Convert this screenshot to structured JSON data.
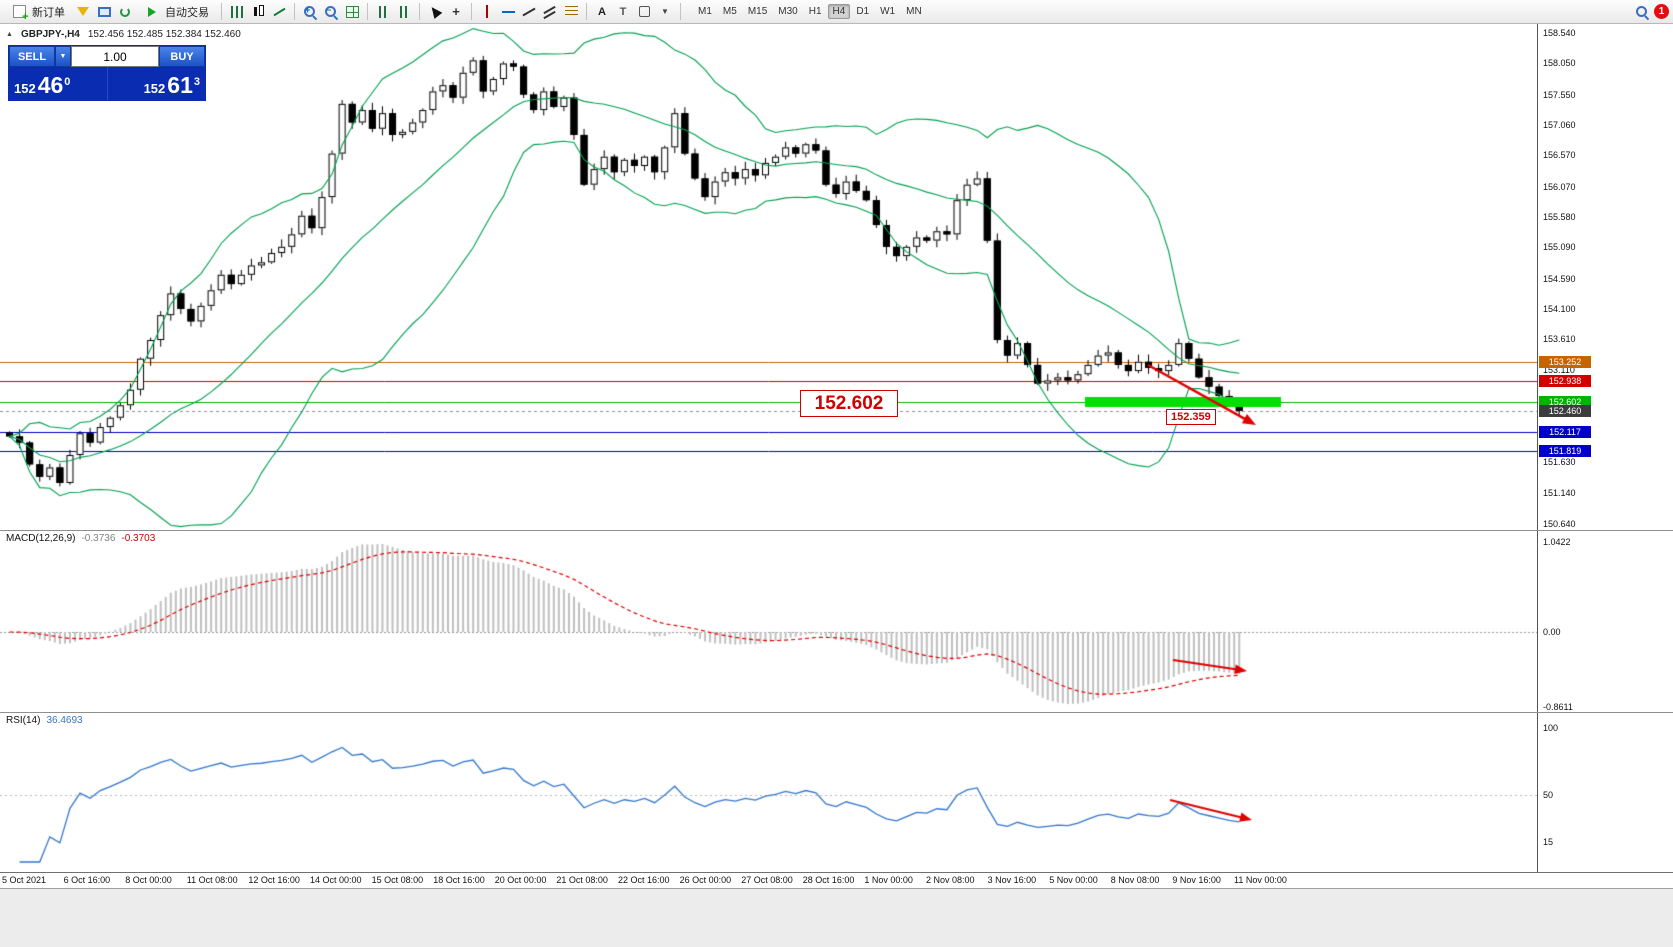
{
  "colors": {
    "band_green": "#00a050",
    "bull": "#ffffff",
    "bear": "#000000",
    "wick": "#000000",
    "macd_hist": "#c0c0c0",
    "macd_signal": "#e00000",
    "rsi_line": "#3377cc",
    "annotation_red": "#e00000",
    "highlight_green": "#00e000",
    "current_price_line": "#909090"
  },
  "toolbar": {
    "new_order_label": "新订单",
    "auto_trading_label": "自动交易",
    "text_tool_label": "A",
    "timeframes": [
      "M1",
      "M5",
      "M15",
      "M30",
      "H1",
      "H4",
      "D1",
      "W1",
      "MN"
    ],
    "active_timeframe": "H4",
    "notification_count": "1"
  },
  "chart_header": {
    "symbol": "GBPJPY-,H4",
    "ohlc": "152.456 152.485 152.384 152.460"
  },
  "trade_panel": {
    "sell_label": "SELL",
    "buy_label": "BUY",
    "volume": "1.00",
    "sell_price_main": "152",
    "sell_price_pips": "46",
    "sell_price_sup": "0",
    "buy_price_main": "152",
    "buy_price_pips": "61",
    "buy_price_sup": "3"
  },
  "price_axis_ticks": [
    "158.540",
    "158.050",
    "157.550",
    "157.060",
    "156.570",
    "156.070",
    "155.580",
    "155.090",
    "154.590",
    "154.100",
    "153.610",
    "153.110",
    "151.630",
    "151.140",
    "150.640"
  ],
  "price_labels": [
    {
      "text": "153.252",
      "bg": "#c86400",
      "price": 153.252
    },
    {
      "text": "152.938",
      "bg": "#d40000",
      "price": 152.938
    },
    {
      "text": "152.602",
      "bg": "#00b400",
      "price": 152.602
    },
    {
      "text": "152.460",
      "bg": "#3c3c3c",
      "price": 152.46
    },
    {
      "text": "152.117",
      "bg": "#0000c8",
      "price": 152.117
    },
    {
      "text": "151.819",
      "bg": "#0000c8",
      "price": 151.819
    }
  ],
  "hlines": [
    {
      "price": 153.252,
      "color": "#c86400",
      "style": "solid"
    },
    {
      "price": 152.938,
      "color": "#d40000",
      "style": "solid"
    },
    {
      "price": 152.602,
      "color": "#00b400",
      "style": "solid"
    },
    {
      "price": 152.46,
      "color": "#909090",
      "style": "dashed"
    },
    {
      "price": 152.117,
      "color": "#0000c8",
      "style": "solid"
    },
    {
      "price": 151.819,
      "color": "#0000c8",
      "style": "solid"
    }
  ],
  "annotations": {
    "big_label": "152.602",
    "small_label": "152.359"
  },
  "macd_label": {
    "name": "MACD(12,26,9)",
    "v1": "-0.3736",
    "v2": "-0.3703"
  },
  "macd_axis": [
    "1.0422",
    "0.00",
    "-0.8611"
  ],
  "rsi_label": {
    "name": "RSI(14)",
    "value": "36.4693"
  },
  "rsi_axis": [
    "100",
    "50",
    "15"
  ],
  "time_axis": [
    "5 Oct 2021",
    "6 Oct 16:00",
    "8 Oct 00:00",
    "11 Oct 08:00",
    "12 Oct 16:00",
    "14 Oct 00:00",
    "15 Oct 08:00",
    "18 Oct 16:00",
    "20 Oct 00:00",
    "21 Oct 08:00",
    "22 Oct 16:00",
    "26 Oct 00:00",
    "27 Oct 08:00",
    "28 Oct 16:00",
    "1 Nov 00:00",
    "2 Nov 08:00",
    "3 Nov 16:00",
    "5 Nov 00:00",
    "8 Nov 08:00",
    "9 Nov 16:00",
    "11 Nov 00:00"
  ],
  "chart_data": {
    "type": "candlestick",
    "symbol": "GBPJPY",
    "timeframe": "H4",
    "price_range": [
      150.64,
      158.54
    ],
    "indicators": [
      "Bollinger(20,2)",
      "MACD(12,26,9)",
      "RSI(14)"
    ],
    "closes": [
      152.05,
      151.95,
      151.6,
      151.4,
      151.55,
      151.3,
      151.75,
      152.1,
      151.95,
      152.2,
      152.35,
      152.55,
      152.8,
      153.3,
      153.6,
      154.0,
      154.35,
      154.1,
      153.9,
      154.15,
      154.4,
      154.65,
      154.5,
      154.65,
      154.8,
      154.85,
      155.0,
      155.1,
      155.3,
      155.6,
      155.4,
      155.9,
      156.6,
      157.4,
      157.1,
      157.3,
      157.0,
      157.25,
      156.9,
      156.95,
      157.1,
      157.3,
      157.6,
      157.7,
      157.5,
      157.9,
      158.1,
      157.6,
      157.8,
      158.05,
      158.0,
      157.55,
      157.3,
      157.6,
      157.35,
      157.5,
      156.9,
      156.1,
      156.35,
      156.55,
      156.3,
      156.5,
      156.4,
      156.55,
      156.3,
      156.7,
      157.25,
      156.6,
      156.2,
      155.9,
      156.15,
      156.3,
      156.2,
      156.35,
      156.25,
      156.45,
      156.55,
      156.7,
      156.6,
      156.75,
      156.65,
      156.1,
      155.95,
      156.15,
      156.0,
      155.85,
      155.45,
      155.1,
      154.95,
      155.1,
      155.25,
      155.2,
      155.35,
      155.3,
      155.85,
      156.1,
      156.2,
      155.2,
      153.6,
      153.35,
      153.55,
      153.2,
      152.9,
      152.95,
      153.0,
      152.95,
      153.05,
      153.2,
      153.35,
      153.4,
      153.2,
      153.1,
      153.25,
      153.15,
      153.1,
      153.2,
      153.55,
      153.3,
      153.0,
      152.85,
      152.7,
      152.55,
      152.46
    ]
  }
}
